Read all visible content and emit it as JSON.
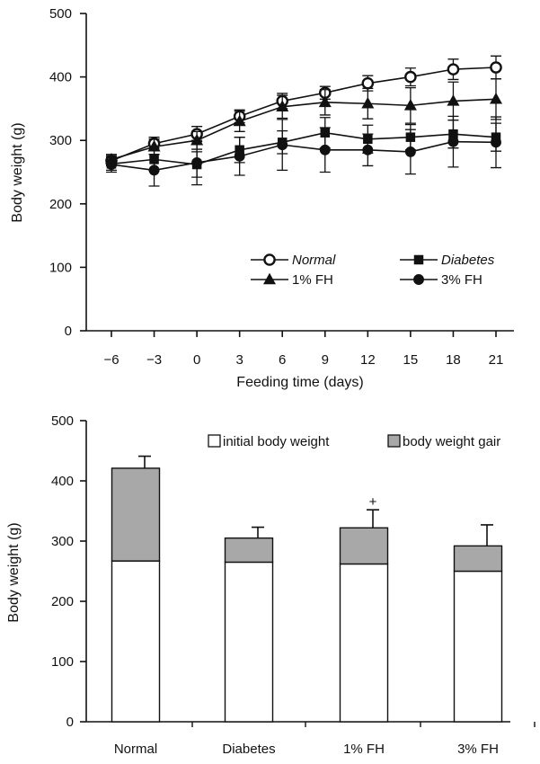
{
  "chart_data": [
    {
      "type": "line",
      "title": "",
      "xlabel": "Feeding time (days)",
      "ylabel": "Body weight (g)",
      "x": [
        -6,
        -3,
        0,
        3,
        6,
        9,
        12,
        15,
        18,
        21
      ],
      "x_tick_labels": [
        "−6",
        "−3",
        "0",
        "3",
        "6",
        "9",
        "12",
        "15",
        "18",
        "21"
      ],
      "ylim": [
        0,
        500
      ],
      "yticks": [
        "0",
        "100",
        "200",
        "300",
        "400",
        "500"
      ],
      "grid": false,
      "legend_position": "bottom-right",
      "series": [
        {
          "name": "Normal",
          "marker": "open-circle",
          "values": [
            268,
            295,
            310,
            338,
            362,
            375,
            390,
            400,
            412,
            415
          ],
          "error": [
            8,
            10,
            12,
            10,
            12,
            10,
            12,
            14,
            16,
            18
          ]
        },
        {
          "name": "1% FH",
          "marker": "triangle",
          "values": [
            270,
            290,
            300,
            330,
            353,
            360,
            358,
            355,
            362,
            365
          ],
          "error": [
            8,
            12,
            14,
            16,
            18,
            20,
            24,
            28,
            30,
            32
          ]
        },
        {
          "name": "Diabetes",
          "marker": "filled-square",
          "values": [
            263,
            270,
            262,
            285,
            297,
            312,
            302,
            305,
            310,
            305
          ],
          "error": [
            10,
            18,
            20,
            20,
            18,
            24,
            22,
            20,
            22,
            22
          ]
        },
        {
          "name": "3% FH",
          "marker": "filled-circle",
          "values": [
            262,
            253,
            265,
            275,
            293,
            285,
            285,
            282,
            298,
            297
          ],
          "error": [
            12,
            25,
            35,
            30,
            40,
            35,
            25,
            35,
            40,
            40
          ]
        }
      ],
      "legend": [
        {
          "label": "Normal",
          "marker": "open-circle"
        },
        {
          "label": "Diabetes",
          "marker": "filled-square"
        },
        {
          "label": "1% FH",
          "marker": "triangle"
        },
        {
          "label": "3% FH",
          "marker": "filled-circle"
        }
      ]
    },
    {
      "type": "bar",
      "stacked": true,
      "title": "",
      "xlabel": "",
      "ylabel": "Body weight (g)",
      "categories": [
        "Normal",
        "Diabetes",
        "1% FH",
        "3% FH"
      ],
      "ylim": [
        0,
        500
      ],
      "yticks": [
        "0",
        "100",
        "200",
        "300",
        "400",
        "500"
      ],
      "legend_position": "top-right",
      "series": [
        {
          "name": "initial body weight",
          "values": [
            267,
            265,
            262,
            250
          ],
          "color": "#ffffff"
        },
        {
          "name": "body weight gair",
          "values": [
            154,
            40,
            60,
            42
          ],
          "color": "#a8a8a8"
        }
      ],
      "total_error": [
        20,
        18,
        30,
        35
      ],
      "annotations": [
        {
          "category": "1% FH",
          "text": "+"
        }
      ]
    }
  ]
}
